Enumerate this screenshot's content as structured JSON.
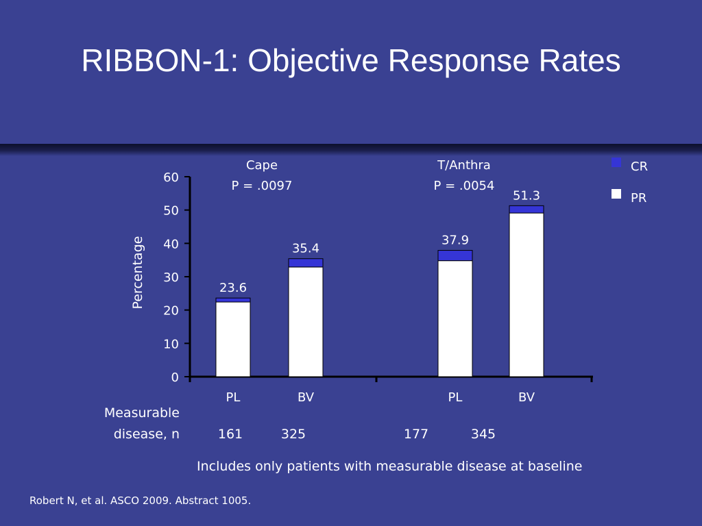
{
  "slide": {
    "title": "RIBBON-1: Objective Response Rates",
    "note": "Includes only patients with measurable disease at baseline",
    "source": "Robert N, et al. ASCO 2009. Abstract 1005.",
    "n_label_line1": "Measurable",
    "n_label_line2": "disease, n"
  },
  "colors": {
    "background": "#3a4192",
    "cr": "#3535d6",
    "pr": "#ffffff",
    "axis": "#000000"
  },
  "chart_data": {
    "type": "bar",
    "stacked": true,
    "ylabel": "Percentage",
    "ylim": [
      0,
      60
    ],
    "yticks": [
      0,
      10,
      20,
      30,
      40,
      50,
      60
    ],
    "legend": {
      "position": "top-right",
      "entries": [
        "CR",
        "PR"
      ]
    },
    "groups": [
      {
        "name": "Cape",
        "pvalue": "P = .0097",
        "bars": [
          {
            "category": "PL",
            "total": 23.6,
            "total_label": "23.6",
            "cr": 1.2,
            "pr": 22.4,
            "n": "161"
          },
          {
            "category": "BV",
            "total": 35.4,
            "total_label": "35.4",
            "cr": 2.5,
            "pr": 32.9,
            "n": "325"
          }
        ]
      },
      {
        "name": "T/Anthra",
        "pvalue": "P = .0054",
        "bars": [
          {
            "category": "PL",
            "total": 37.9,
            "total_label": "37.9",
            "cr": 3.1,
            "pr": 34.8,
            "n": "177"
          },
          {
            "category": "BV",
            "total": 51.3,
            "total_label": "51.3",
            "cr": 2.2,
            "pr": 49.1,
            "n": "345"
          }
        ]
      }
    ]
  }
}
